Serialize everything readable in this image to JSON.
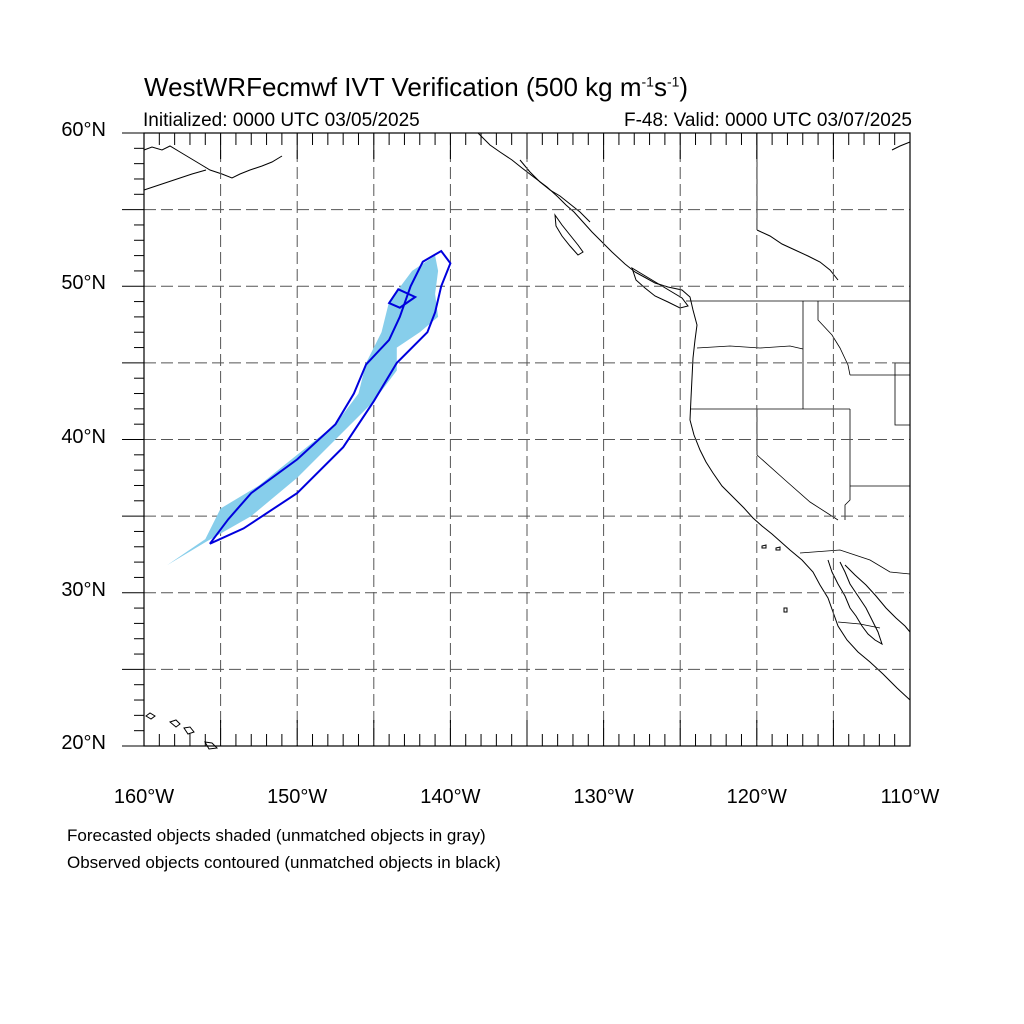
{
  "header": {
    "title_main": "WestWRFecmwf IVT Verification (500 kg m",
    "title_sup1": "-1",
    "title_mid": "s",
    "title_sup2": "-1",
    "title_end": ")",
    "initialized": "Initialized: 0000 UTC 03/05/2025",
    "valid": "F-48: Valid: 0000 UTC 03/07/2025"
  },
  "axes": {
    "lat_labels": [
      {
        "value": 60,
        "text": "60°N"
      },
      {
        "value": 50,
        "text": "50°N"
      },
      {
        "value": 40,
        "text": "40°N"
      },
      {
        "value": 30,
        "text": "30°N"
      },
      {
        "value": 20,
        "text": "20°N"
      }
    ],
    "lon_labels": [
      {
        "value": -160,
        "text": "160°W"
      },
      {
        "value": -150,
        "text": "150°W"
      },
      {
        "value": -140,
        "text": "140°W"
      },
      {
        "value": -130,
        "text": "130°W"
      },
      {
        "value": -120,
        "text": "120°W"
      },
      {
        "value": -110,
        "text": "110°W"
      }
    ],
    "lon_range": [
      -160,
      -110
    ],
    "lat_range": [
      20,
      60
    ],
    "grid_step_deg": 5
  },
  "legend": {
    "forecast_note": "Forecasted objects shaded (unmatched objects in gray)",
    "observed_note": "Observed objects contoured (unmatched objects in black)"
  },
  "colors": {
    "forecast_fill": "#87ceeb",
    "observed_contour": "#0000dd",
    "coastline": "#000000",
    "grid": "#555555"
  },
  "chart_data": {
    "type": "map",
    "forecast_object_lonlat": [
      [
        -158.5,
        31.8
      ],
      [
        -156.0,
        33.5
      ],
      [
        -155.0,
        35.5
      ],
      [
        -152.5,
        37.0
      ],
      [
        -150.0,
        39.0
      ],
      [
        -147.5,
        41.0
      ],
      [
        -146.0,
        43.0
      ],
      [
        -145.5,
        45.0
      ],
      [
        -144.5,
        47.0
      ],
      [
        -144.0,
        49.0
      ],
      [
        -142.5,
        51.0
      ],
      [
        -141.0,
        52.0
      ],
      [
        -140.8,
        51.0
      ],
      [
        -141.0,
        49.5
      ],
      [
        -140.8,
        48.0
      ],
      [
        -142.0,
        47.0
      ],
      [
        -143.5,
        46.0
      ],
      [
        -143.5,
        44.5
      ],
      [
        -145.0,
        42.5
      ],
      [
        -147.5,
        40.0
      ],
      [
        -150.0,
        37.5
      ],
      [
        -153.0,
        35.0
      ],
      [
        -156.0,
        33.3
      ],
      [
        -158.5,
        31.8
      ]
    ],
    "observed_object_lonlat": [
      [
        -155.7,
        33.2
      ],
      [
        -154.5,
        34.8
      ],
      [
        -153.0,
        36.5
      ],
      [
        -150.0,
        38.7
      ],
      [
        -147.5,
        41.0
      ],
      [
        -146.3,
        43.0
      ],
      [
        -145.5,
        44.9
      ],
      [
        -144.0,
        46.5
      ],
      [
        -143.3,
        48.0
      ],
      [
        -142.6,
        50.0
      ],
      [
        -141.8,
        51.6
      ],
      [
        -140.6,
        52.3
      ],
      [
        -140.0,
        51.5
      ],
      [
        -140.6,
        50.0
      ],
      [
        -141.0,
        48.3
      ],
      [
        -141.5,
        47.0
      ],
      [
        -143.5,
        45.0
      ],
      [
        -145.0,
        42.5
      ],
      [
        -147.0,
        39.5
      ],
      [
        -150.0,
        36.5
      ],
      [
        -153.5,
        34.2
      ],
      [
        -155.7,
        33.2
      ]
    ],
    "observed_inner_lonlat": [
      [
        -142.3,
        49.3
      ],
      [
        -143.3,
        48.6
      ],
      [
        -144.0,
        48.9
      ],
      [
        -143.4,
        49.8
      ],
      [
        -142.3,
        49.3
      ]
    ]
  }
}
